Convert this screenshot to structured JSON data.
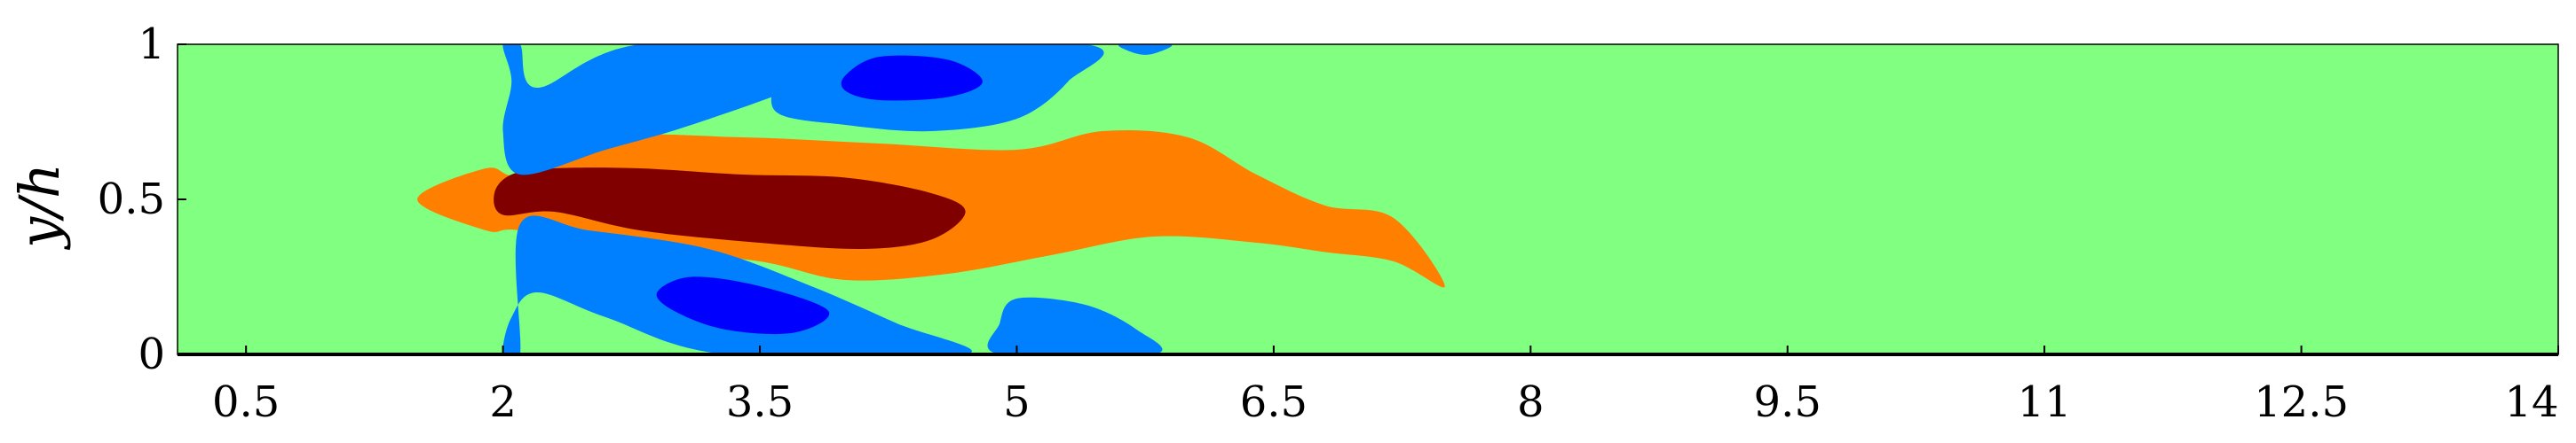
{
  "chart_data": {
    "type": "heatmap",
    "title": "",
    "xlabel": "",
    "ylabel": "y/h",
    "xlim": [
      0.1,
      14
    ],
    "ylim": [
      0,
      1
    ],
    "xticks": [
      "0.5",
      "2",
      "3.5",
      "5",
      "6.5",
      "8",
      "9.5",
      "11",
      "12.5",
      "14"
    ],
    "xtick_values": [
      0.5,
      2,
      3.5,
      5,
      6.5,
      8,
      9.5,
      11,
      12.5,
      14
    ],
    "yticks": [
      "0",
      "0.5",
      "1"
    ],
    "ytick_values": [
      0,
      0.5,
      1
    ],
    "grid": false,
    "colors": {
      "background": "#80ff80",
      "strong_negative": "#0000ff",
      "negative": "#0080ff",
      "positive": "#ff8000",
      "strong_positive": "#800000"
    },
    "regions": [
      {
        "name": "orange-wake",
        "level": "positive",
        "points": [
          [
            1.5,
            0.5
          ],
          [
            1.9,
            0.6
          ],
          [
            2.1,
            0.58
          ],
          [
            2.6,
            0.7
          ],
          [
            3.4,
            0.7
          ],
          [
            4.2,
            0.68
          ],
          [
            5.0,
            0.66
          ],
          [
            5.5,
            0.72
          ],
          [
            6.0,
            0.7
          ],
          [
            6.4,
            0.58
          ],
          [
            6.8,
            0.48
          ],
          [
            7.2,
            0.44
          ],
          [
            7.5,
            0.22
          ],
          [
            7.2,
            0.3
          ],
          [
            6.8,
            0.33
          ],
          [
            6.4,
            0.36
          ],
          [
            5.8,
            0.38
          ],
          [
            5.2,
            0.32
          ],
          [
            4.6,
            0.26
          ],
          [
            4.0,
            0.24
          ],
          [
            3.5,
            0.3
          ],
          [
            2.8,
            0.34
          ],
          [
            2.1,
            0.4
          ],
          [
            1.9,
            0.4
          ]
        ]
      },
      {
        "name": "dark-red-core",
        "level": "strong_positive",
        "points": [
          [
            1.95,
            0.52
          ],
          [
            2.05,
            0.58
          ],
          [
            2.3,
            0.6
          ],
          [
            2.8,
            0.6
          ],
          [
            3.4,
            0.58
          ],
          [
            4.0,
            0.57
          ],
          [
            4.5,
            0.52
          ],
          [
            4.7,
            0.46
          ],
          [
            4.5,
            0.37
          ],
          [
            4.1,
            0.34
          ],
          [
            3.5,
            0.36
          ],
          [
            2.8,
            0.4
          ],
          [
            2.3,
            0.46
          ],
          [
            2.0,
            0.45
          ]
        ]
      },
      {
        "name": "upper-blue-near",
        "level": "negative",
        "points": [
          [
            2.0,
            1.0
          ],
          [
            2.1,
            1.0
          ],
          [
            2.2,
            0.86
          ],
          [
            2.8,
            1.0
          ],
          [
            4.2,
            1.0
          ],
          [
            3.8,
            0.88
          ],
          [
            3.1,
            0.74
          ],
          [
            2.6,
            0.66
          ],
          [
            2.1,
            0.58
          ],
          [
            2.0,
            0.72
          ],
          [
            2.05,
            0.88
          ]
        ]
      },
      {
        "name": "upper-blue-vortex",
        "level": "negative",
        "points": [
          [
            3.7,
            1.0
          ],
          [
            5.4,
            1.0
          ],
          [
            5.3,
            0.88
          ],
          [
            5.0,
            0.76
          ],
          [
            4.5,
            0.72
          ],
          [
            4.0,
            0.74
          ],
          [
            3.6,
            0.78
          ],
          [
            3.6,
            0.9
          ]
        ]
      },
      {
        "name": "upper-blue-cap",
        "level": "negative",
        "points": [
          [
            5.6,
            1.0
          ],
          [
            5.9,
            1.0
          ],
          [
            5.8,
            0.97
          ],
          [
            5.7,
            0.97
          ]
        ]
      },
      {
        "name": "upper-dark-core",
        "level": "strong_negative",
        "points": [
          [
            4.0,
            0.9
          ],
          [
            4.2,
            0.96
          ],
          [
            4.6,
            0.95
          ],
          [
            4.8,
            0.88
          ],
          [
            4.6,
            0.83
          ],
          [
            4.2,
            0.82
          ],
          [
            4.0,
            0.85
          ]
        ]
      },
      {
        "name": "lower-blue-near",
        "level": "negative",
        "points": [
          [
            2.0,
            0.0
          ],
          [
            2.1,
            0.0
          ],
          [
            2.1,
            0.42
          ],
          [
            2.5,
            0.4
          ],
          [
            3.2,
            0.34
          ],
          [
            3.8,
            0.22
          ],
          [
            4.3,
            0.1
          ],
          [
            4.7,
            0.0
          ],
          [
            3.3,
            0.0
          ],
          [
            2.6,
            0.12
          ],
          [
            2.2,
            0.2
          ],
          [
            2.05,
            0.12
          ]
        ]
      },
      {
        "name": "lower-blue-vortex",
        "level": "negative",
        "points": [
          [
            4.9,
            0.0
          ],
          [
            5.8,
            0.0
          ],
          [
            5.7,
            0.08
          ],
          [
            5.4,
            0.16
          ],
          [
            5.0,
            0.18
          ],
          [
            4.9,
            0.1
          ]
        ]
      },
      {
        "name": "lower-dark-core",
        "level": "strong_negative",
        "points": [
          [
            2.9,
            0.2
          ],
          [
            3.1,
            0.25
          ],
          [
            3.5,
            0.22
          ],
          [
            3.9,
            0.14
          ],
          [
            3.7,
            0.07
          ],
          [
            3.3,
            0.08
          ],
          [
            3.0,
            0.14
          ]
        ]
      }
    ]
  }
}
